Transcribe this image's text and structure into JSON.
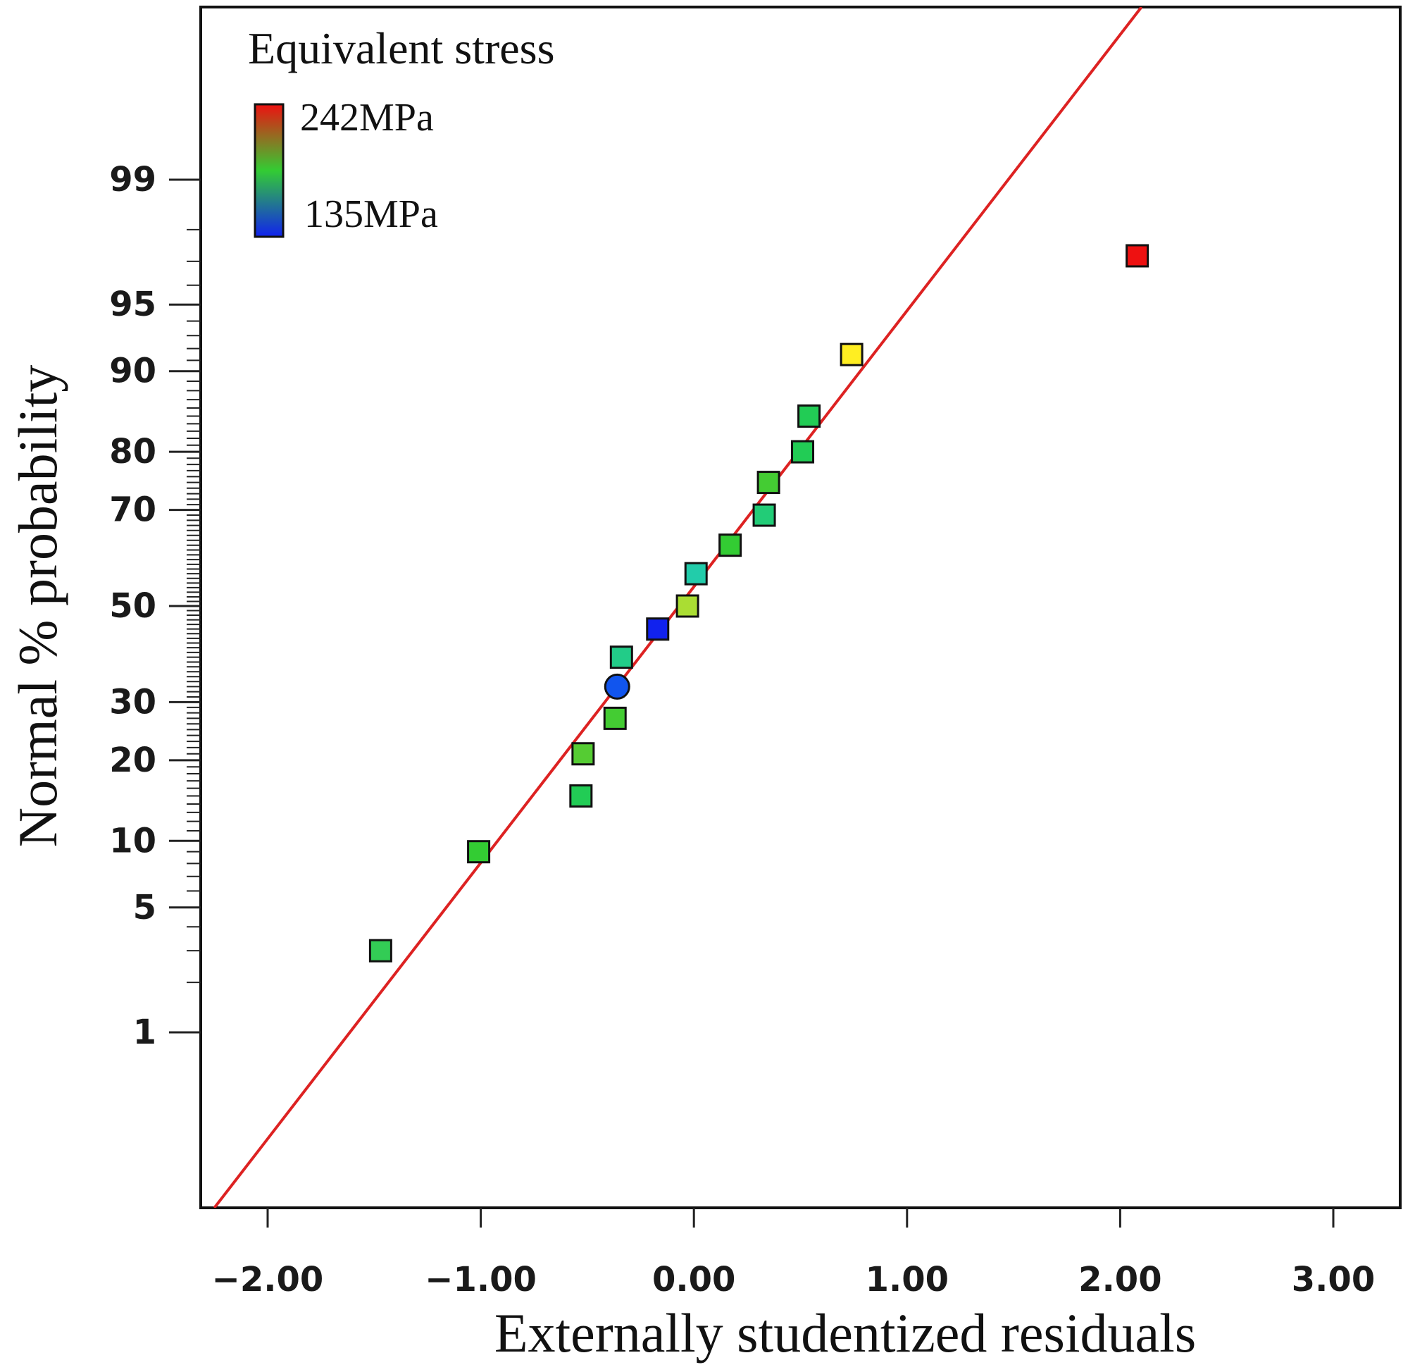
{
  "chart_data": {
    "type": "scatter",
    "xlabel": "Externally studentized residuals",
    "ylabel": "Normal % probability",
    "xlim": [
      -2.25,
      3.3
    ],
    "x_ticks": [
      -2.0,
      -1.0,
      0.0,
      1.0,
      2.0,
      3.0
    ],
    "x_tick_labels": [
      "−2.00",
      "−1.00",
      "0.00",
      "1.00",
      "2.00",
      "3.00"
    ],
    "ylim_percent": [
      0.1,
      99.9
    ],
    "y_ticks": [
      1,
      5,
      10,
      20,
      30,
      50,
      70,
      80,
      90,
      95,
      99
    ],
    "y_tick_labels": [
      "1",
      "5",
      "10",
      "20",
      "30",
      "50",
      "70",
      "80",
      "90",
      "95",
      "99"
    ],
    "reference_line": {
      "color": "#dd2222",
      "x_start": -2.25,
      "x_end": 2.1
    },
    "legend": {
      "title": "Equivalent stress",
      "max_label": "242MPa",
      "min_label": "135MPa",
      "max_value": 242,
      "min_value": 135,
      "gradient_colors": [
        "#ee1111",
        "#33cc33",
        "#1122ee"
      ]
    },
    "series": [
      {
        "name": "Equivalent stress",
        "points": [
          {
            "x": -1.47,
            "y": 3.0,
            "color": "#33cc55",
            "marker": "square"
          },
          {
            "x": -1.01,
            "y": 9.0,
            "color": "#33cc33",
            "marker": "square"
          },
          {
            "x": -0.53,
            "y": 15.0,
            "color": "#22cc55",
            "marker": "square"
          },
          {
            "x": -0.52,
            "y": 21.0,
            "color": "#55cc33",
            "marker": "square"
          },
          {
            "x": -0.37,
            "y": 27.0,
            "color": "#44cc33",
            "marker": "square"
          },
          {
            "x": -0.36,
            "y": 33.0,
            "color": "#1155ee",
            "marker": "circle"
          },
          {
            "x": -0.34,
            "y": 39.0,
            "color": "#22cc88",
            "marker": "square"
          },
          {
            "x": -0.17,
            "y": 45.0,
            "color": "#1122ee",
            "marker": "square"
          },
          {
            "x": -0.03,
            "y": 50.0,
            "color": "#aadd33",
            "marker": "square"
          },
          {
            "x": 0.01,
            "y": 57.0,
            "color": "#22ccaa",
            "marker": "square"
          },
          {
            "x": 0.17,
            "y": 63.0,
            "color": "#33cc33",
            "marker": "square"
          },
          {
            "x": 0.33,
            "y": 69.0,
            "color": "#22cc77",
            "marker": "square"
          },
          {
            "x": 0.35,
            "y": 75.0,
            "color": "#44cc33",
            "marker": "square"
          },
          {
            "x": 0.51,
            "y": 80.0,
            "color": "#22cc55",
            "marker": "square"
          },
          {
            "x": 0.54,
            "y": 85.0,
            "color": "#22cc55",
            "marker": "square"
          },
          {
            "x": 0.74,
            "y": 91.5,
            "color": "#ffee22",
            "marker": "square"
          },
          {
            "x": 2.08,
            "y": 97.2,
            "color": "#ee1111",
            "marker": "square"
          }
        ]
      }
    ]
  }
}
